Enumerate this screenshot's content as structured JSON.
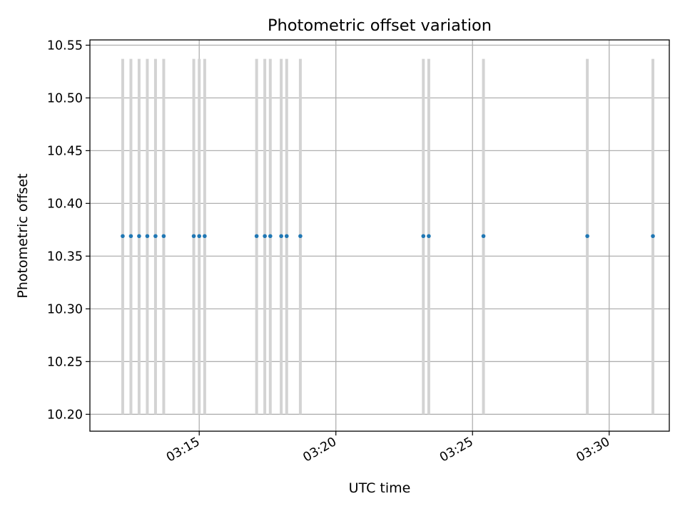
{
  "chart_data": {
    "type": "scatter",
    "title": "Photometric offset variation",
    "xlabel": "UTC time",
    "ylabel": "Photometric offset",
    "x": [
      "03:12:12",
      "03:12:30",
      "03:12:48",
      "03:13:06",
      "03:13:24",
      "03:13:42",
      "03:14:48",
      "03:15:00",
      "03:15:12",
      "03:17:06",
      "03:17:24",
      "03:17:36",
      "03:18:00",
      "03:18:12",
      "03:18:42",
      "03:23:12",
      "03:23:24",
      "03:25:24",
      "03:29:12",
      "03:31:36"
    ],
    "y": [
      10.369,
      10.369,
      10.369,
      10.369,
      10.369,
      10.369,
      10.369,
      10.369,
      10.369,
      10.369,
      10.369,
      10.369,
      10.369,
      10.369,
      10.369,
      10.369,
      10.369,
      10.369,
      10.369,
      10.369
    ],
    "error_band": [
      10.2,
      10.537
    ],
    "xlim": [
      "03:11:00",
      "03:32:12"
    ],
    "ylim": [
      10.184,
      10.555
    ],
    "xticks": [
      "03:15",
      "03:20",
      "03:25",
      "03:30"
    ],
    "yticks": [
      "10.20",
      "10.25",
      "10.30",
      "10.35",
      "10.40",
      "10.45",
      "10.50",
      "10.55"
    ],
    "grid": true,
    "colors": {
      "point": "#1f77b4",
      "errorbar": "#d3d3d3",
      "grid": "#b0b0b0"
    }
  }
}
